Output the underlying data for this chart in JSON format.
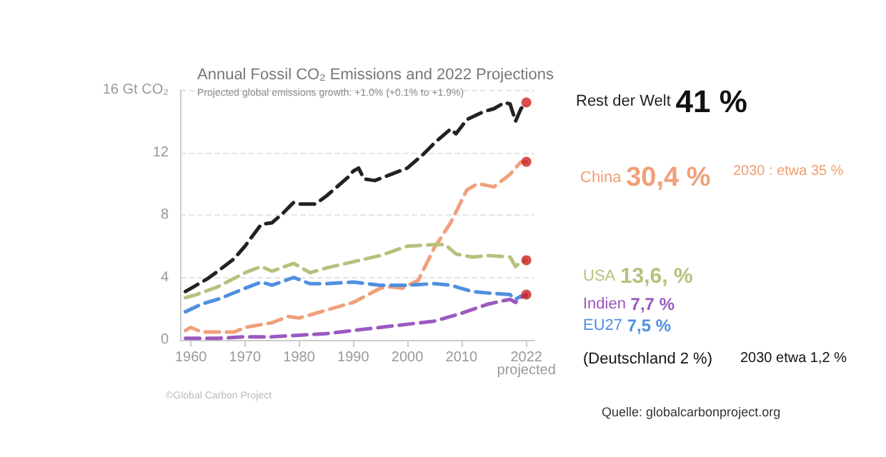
{
  "chart_data": {
    "type": "line",
    "title": "Annual Fossil CO₂ Emissions and 2022 Projections",
    "subtitle": "Projected global emissions growth: +1.0% (+0.1% to +1.9%)",
    "xlim": [
      1958,
      2023.5
    ],
    "xticks": [
      1960,
      1970,
      1980,
      1990,
      2000,
      2010,
      {
        "value": 2022,
        "label": "2022\nprojected"
      }
    ],
    "ylim": [
      0,
      16
    ],
    "yticks": [
      0,
      4,
      8,
      12,
      {
        "value": 16,
        "label": "16 Gt CO₂"
      }
    ],
    "grid": "y",
    "legend": false,
    "marker": "none",
    "line_style": "dashed",
    "series": [
      {
        "name": "Rest der Welt",
        "color": "#222222",
        "x": [
          1959,
          1960,
          1963,
          1965,
          1968,
          1970,
          1973,
          1975,
          1977,
          1979,
          1980,
          1983,
          1985,
          1987,
          1989,
          1990,
          1991,
          1992,
          1994,
          1997,
          2000,
          2003,
          2005,
          2008,
          2009,
          2011,
          2014,
          2016,
          2018,
          2019,
          2020,
          2021,
          2022
        ],
        "values": [
          3.1,
          3.3,
          3.9,
          4.4,
          5.2,
          6.0,
          7.4,
          7.5,
          8.1,
          8.8,
          8.7,
          8.7,
          9.2,
          9.8,
          10.4,
          10.8,
          11.0,
          10.3,
          10.2,
          10.6,
          11.0,
          11.9,
          12.6,
          13.5,
          13.2,
          14.1,
          14.6,
          14.8,
          15.2,
          15.1,
          14.0,
          14.8,
          15.2
        ]
      },
      {
        "name": "China",
        "color": "#f0a07a",
        "x": [
          1959,
          1960,
          1962,
          1965,
          1968,
          1970,
          1975,
          1978,
          1980,
          1985,
          1990,
          1995,
          1997,
          1999,
          2002,
          2005,
          2008,
          2011,
          2013,
          2016,
          2019,
          2021,
          2022
        ],
        "values": [
          0.6,
          0.8,
          0.5,
          0.5,
          0.5,
          0.8,
          1.1,
          1.5,
          1.4,
          1.9,
          2.4,
          3.3,
          3.4,
          3.3,
          3.8,
          5.9,
          7.5,
          9.6,
          10.0,
          9.8,
          10.6,
          11.4,
          11.4
        ]
      },
      {
        "name": "USA",
        "color": "#b5c27e",
        "x": [
          1959,
          1961,
          1965,
          1970,
          1973,
          1975,
          1979,
          1982,
          1985,
          1990,
          1995,
          2000,
          2005,
          2007,
          2009,
          2012,
          2015,
          2019,
          2020,
          2021,
          2022
        ],
        "values": [
          2.7,
          2.9,
          3.4,
          4.3,
          4.7,
          4.4,
          4.9,
          4.3,
          4.6,
          5.0,
          5.4,
          6.0,
          6.1,
          6.1,
          5.5,
          5.3,
          5.4,
          5.3,
          4.7,
          5.0,
          5.1
        ]
      },
      {
        "name": "EU27",
        "color": "#4f8fe0",
        "x": [
          1959,
          1962,
          1965,
          1970,
          1973,
          1975,
          1979,
          1982,
          1985,
          1990,
          1995,
          2000,
          2005,
          2008,
          2010,
          2012,
          2015,
          2019,
          2020,
          2021,
          2022
        ],
        "values": [
          1.8,
          2.3,
          2.6,
          3.3,
          3.7,
          3.5,
          4.0,
          3.6,
          3.6,
          3.7,
          3.5,
          3.5,
          3.6,
          3.5,
          3.3,
          3.1,
          3.0,
          2.9,
          2.6,
          2.8,
          2.8
        ]
      },
      {
        "name": "Indien",
        "color": "#9b59c0",
        "x": [
          1959,
          1965,
          1970,
          1975,
          1980,
          1985,
          1990,
          1995,
          2000,
          2005,
          2010,
          2015,
          2019,
          2020,
          2021,
          2022
        ],
        "values": [
          0.1,
          0.1,
          0.2,
          0.2,
          0.3,
          0.4,
          0.6,
          0.8,
          1.0,
          1.2,
          1.7,
          2.3,
          2.6,
          2.4,
          2.7,
          2.9
        ]
      },
      {
        "type": "scatter",
        "color": "#cc2222",
        "marker": "circle",
        "x": [
          2022,
          2022,
          2022,
          2022
        ],
        "values": [
          15.2,
          11.4,
          5.1,
          2.9
        ]
      }
    ],
    "annotations": [
      "41 %",
      "30,4 %",
      "13,6, %",
      "7,5 %",
      "7,7 %",
      "2030 : etwa 35 %",
      "(Deutschland 2 %)",
      "2030 etwa 1,2 %",
      "Quelle: globalcarbonproject.org",
      "©Global Carbon Project"
    ]
  }
}
